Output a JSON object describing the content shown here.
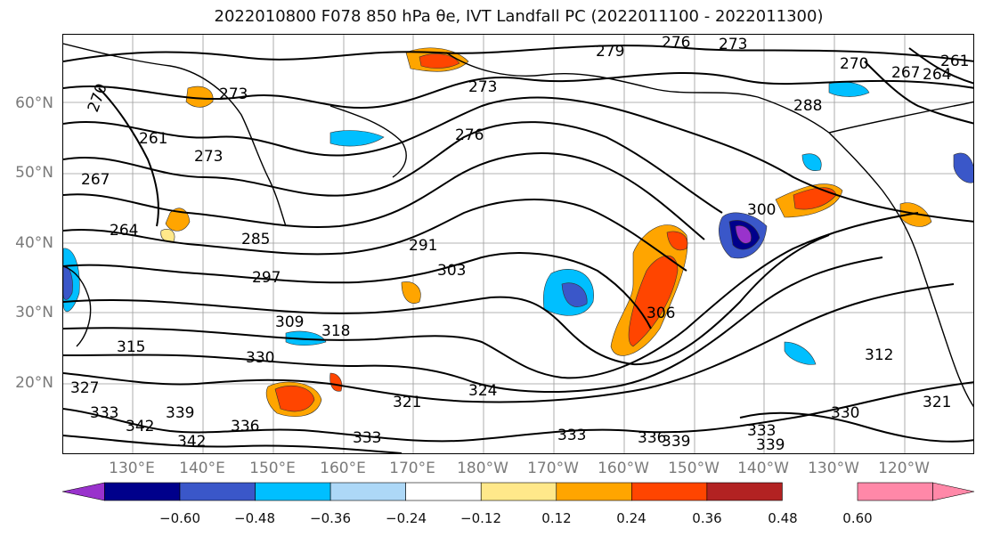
{
  "title_text": "2022010800 F078 850 hPa θe, IVT Landfall PC (2022011100 - 2022011300)",
  "lat_labels": [
    "60°N",
    "50°N",
    "40°N",
    "30°N",
    "20°N"
  ],
  "lon_labels": [
    "130°E",
    "140°E",
    "150°E",
    "160°E",
    "170°E",
    "180°W",
    "170°W",
    "160°W",
    "150°W",
    "140°W",
    "130°W",
    "120°W"
  ],
  "contour_labels": [
    "270",
    "261",
    "273",
    "273",
    "279",
    "276",
    "273",
    "273",
    "270",
    "267",
    "264",
    "261",
    "267",
    "264",
    "276",
    "288",
    "285",
    "291",
    "303",
    "300",
    "297",
    "306",
    "309",
    "318",
    "315",
    "330",
    "327",
    "333",
    "342",
    "339",
    "342",
    "336",
    "333",
    "321",
    "324",
    "333",
    "336",
    "339",
    "312",
    "333",
    "330",
    "321",
    "339"
  ],
  "colorbar": {
    "ticks": [
      "−0.60",
      "−0.48",
      "−0.36",
      "−0.24",
      "−0.12",
      "0.12",
      "0.24",
      "0.36",
      "0.48",
      "0.60"
    ],
    "colors": [
      "#9932cc",
      "#00008b",
      "#3a57c9",
      "#00bfff",
      "#add8f7",
      "#ffffff",
      "#ffe88a",
      "#ffa500",
      "#ff4500",
      "#b22222",
      "#ff88a8"
    ]
  }
}
